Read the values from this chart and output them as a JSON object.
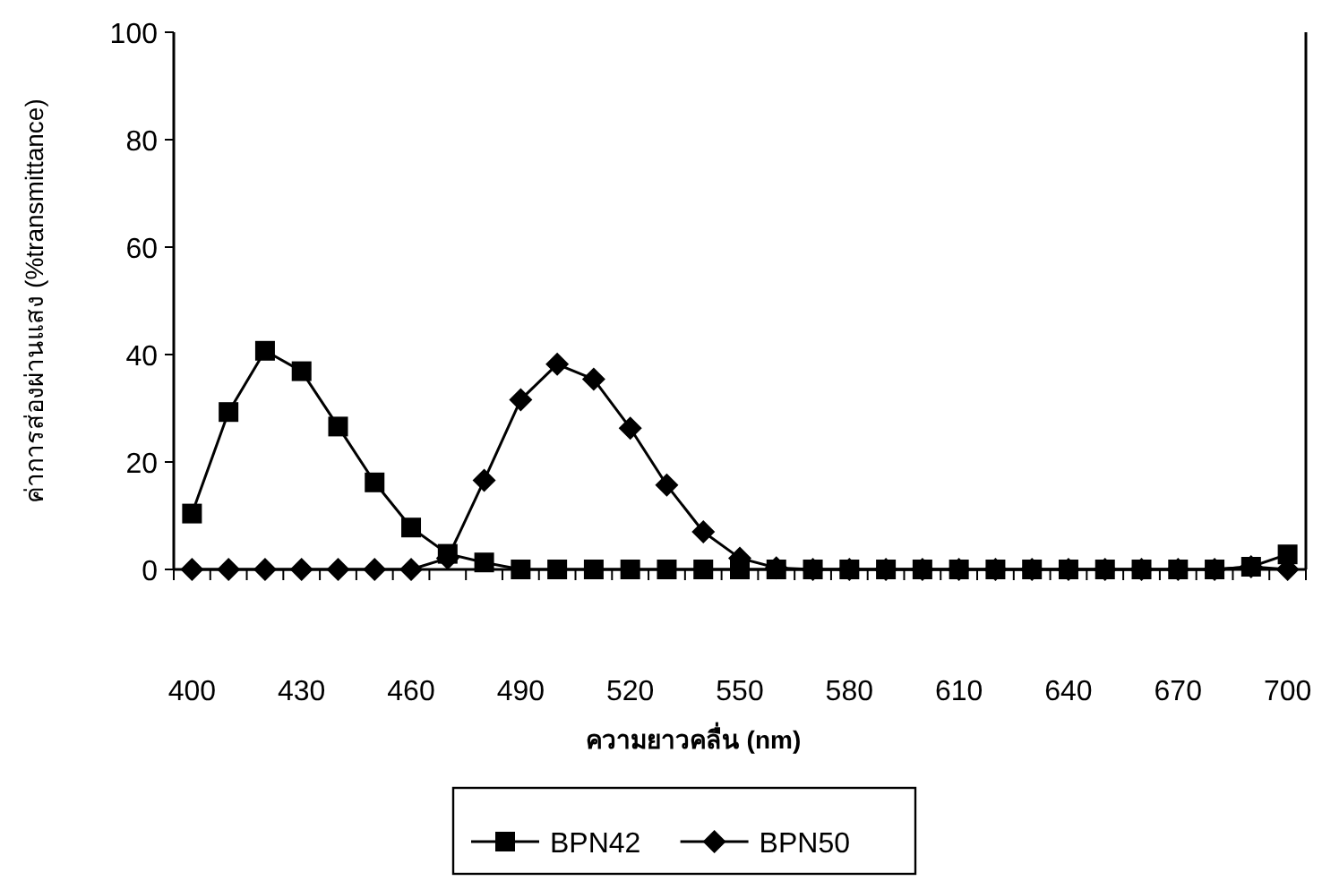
{
  "chart_data": {
    "type": "line",
    "xlabel": "ความยาวคลื่น (nm)",
    "ylabel": "ค่าการส่องผ่านแสง (%transmittance)",
    "categories": [
      "400",
      null,
      null,
      "430",
      null,
      null,
      "460",
      null,
      null,
      "490",
      null,
      null,
      "520",
      null,
      null,
      "550",
      null,
      null,
      "580",
      null,
      null,
      "610",
      null,
      null,
      "640",
      null,
      null,
      "670",
      null,
      null,
      "700"
    ],
    "ylim": [
      0,
      100
    ],
    "yticks": [
      0,
      20,
      40,
      60,
      80,
      100
    ],
    "grid": false,
    "legend": "bottom",
    "series": [
      {
        "name": "BPN42",
        "color": "#000000",
        "marker": "square",
        "values": [
          10.4,
          29.3,
          40.7,
          36.9,
          26.6,
          16.2,
          7.8,
          2.9,
          1.3,
          0,
          0,
          0,
          0,
          0,
          0,
          0,
          0,
          0,
          0,
          0,
          0,
          0,
          0,
          0,
          0,
          0,
          0,
          0,
          0,
          0.5,
          2.8
        ]
      },
      {
        "name": "BPN50",
        "color": "#000000",
        "marker": "diamond",
        "values": [
          0,
          0,
          0,
          0,
          0,
          0,
          0,
          2.1,
          16.6,
          31.6,
          38.2,
          35.4,
          26.3,
          15.7,
          7,
          2.1,
          0.3,
          0,
          0,
          0,
          0,
          0,
          0,
          0,
          0,
          0,
          0,
          0,
          0,
          0.5,
          0
        ]
      }
    ]
  }
}
